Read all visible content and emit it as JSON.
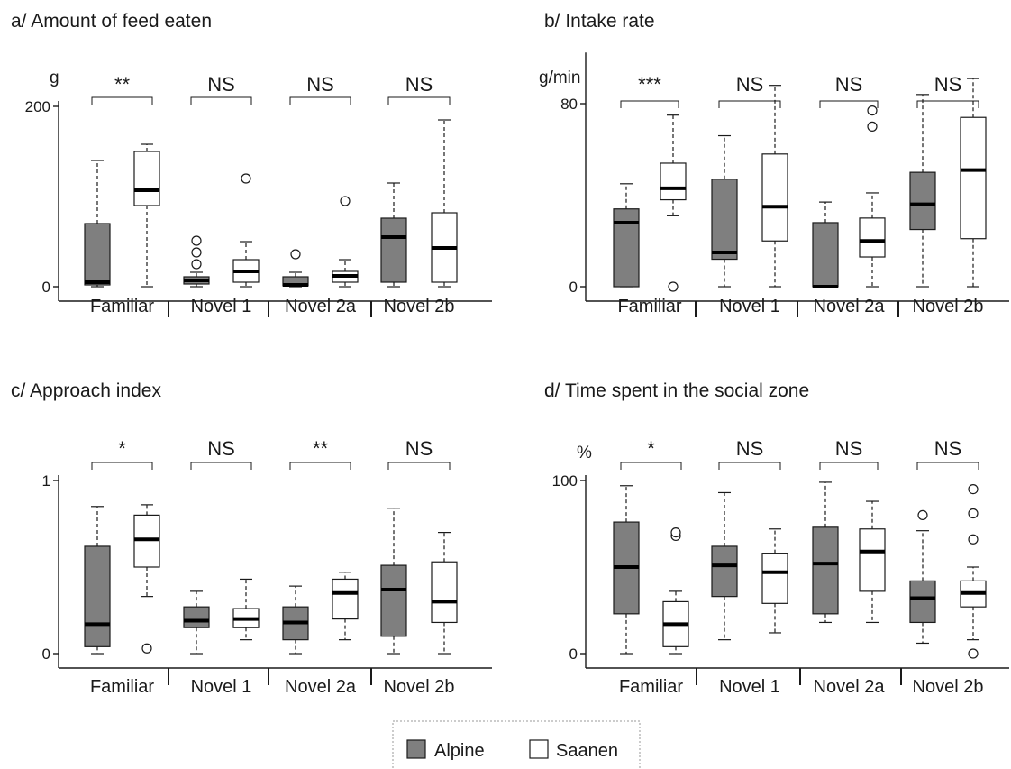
{
  "chart_data": [
    {
      "type": "box",
      "title": "a/ Amount of feed eaten",
      "ylabel": "g",
      "ylim": [
        0,
        200
      ],
      "yticks": [
        0,
        200
      ],
      "categories": [
        "Familiar",
        "Novel 1",
        "Novel 2a",
        "Novel 2b"
      ],
      "significance": [
        "**",
        "NS",
        "NS",
        "NS"
      ],
      "series": [
        {
          "name": "Alpine",
          "boxes": [
            {
              "min": 0,
              "q1": 2,
              "median": 5,
              "q3": 70,
              "max": 140,
              "outliers": []
            },
            {
              "min": 0,
              "q1": 3,
              "median": 7,
              "q3": 11,
              "max": 16,
              "outliers": [
                25,
                38,
                51
              ]
            },
            {
              "min": 0,
              "q1": 1,
              "median": 2,
              "q3": 11,
              "max": 16,
              "outliers": [
                36
              ]
            },
            {
              "min": 0,
              "q1": 5,
              "median": 55,
              "q3": 76,
              "max": 115,
              "outliers": []
            }
          ]
        },
        {
          "name": "Saanen",
          "boxes": [
            {
              "min": 0,
              "q1": 90,
              "median": 107,
              "q3": 150,
              "max": 158,
              "outliers": []
            },
            {
              "min": 0,
              "q1": 5,
              "median": 17,
              "q3": 30,
              "max": 50,
              "outliers": [
                120
              ]
            },
            {
              "min": 0,
              "q1": 5,
              "median": 12,
              "q3": 17,
              "max": 30,
              "outliers": [
                95
              ]
            },
            {
              "min": 0,
              "q1": 5,
              "median": 43,
              "q3": 82,
              "max": 185,
              "outliers": []
            }
          ]
        }
      ]
    },
    {
      "type": "box",
      "title": "b/ Intake rate",
      "ylabel": "g/min",
      "ylim": [
        0,
        100
      ],
      "yticks": [
        0,
        80
      ],
      "categories": [
        "Familiar",
        "Novel 1",
        "Novel 2a",
        "Novel 2b"
      ],
      "significance": [
        "***",
        "NS",
        "NS",
        "NS"
      ],
      "series": [
        {
          "name": "Alpine",
          "boxes": [
            {
              "min": 0,
              "q1": 0,
              "median": 28,
              "q3": 34,
              "max": 45,
              "outliers": []
            },
            {
              "min": 0,
              "q1": 12,
              "median": 15,
              "q3": 47,
              "max": 66,
              "outliers": []
            },
            {
              "min": 0,
              "q1": 0,
              "median": 0,
              "q3": 28,
              "max": 37,
              "outliers": []
            },
            {
              "min": 0,
              "q1": 25,
              "median": 36,
              "q3": 50,
              "max": 84,
              "outliers": []
            }
          ]
        },
        {
          "name": "Saanen",
          "boxes": [
            {
              "min": 31,
              "q1": 38,
              "median": 43,
              "q3": 54,
              "max": 75,
              "outliers": [
                0
              ]
            },
            {
              "min": 0,
              "q1": 20,
              "median": 35,
              "q3": 58,
              "max": 88,
              "outliers": []
            },
            {
              "min": 0,
              "q1": 13,
              "median": 20,
              "q3": 30,
              "max": 41,
              "outliers": [
                70,
                77
              ]
            },
            {
              "min": 0,
              "q1": 21,
              "median": 51,
              "q3": 74,
              "max": 91,
              "outliers": []
            }
          ]
        }
      ]
    },
    {
      "type": "box",
      "title": "c/ Approach index",
      "ylabel": "",
      "ylim": [
        0,
        1
      ],
      "yticks": [
        0,
        1
      ],
      "categories": [
        "Familiar",
        "Novel 1",
        "Novel 2a",
        "Novel 2b"
      ],
      "significance": [
        "*",
        "NS",
        "**",
        "NS"
      ],
      "series": [
        {
          "name": "Alpine",
          "boxes": [
            {
              "min": 0,
              "q1": 0.04,
              "median": 0.17,
              "q3": 0.62,
              "max": 0.85,
              "outliers": []
            },
            {
              "min": 0,
              "q1": 0.15,
              "median": 0.19,
              "q3": 0.27,
              "max": 0.36,
              "outliers": []
            },
            {
              "min": 0,
              "q1": 0.08,
              "median": 0.18,
              "q3": 0.27,
              "max": 0.39,
              "outliers": []
            },
            {
              "min": 0,
              "q1": 0.1,
              "median": 0.37,
              "q3": 0.51,
              "max": 0.84,
              "outliers": []
            }
          ]
        },
        {
          "name": "Saanen",
          "boxes": [
            {
              "min": 0.33,
              "q1": 0.5,
              "median": 0.66,
              "q3": 0.8,
              "max": 0.86,
              "outliers": [
                0.03
              ]
            },
            {
              "min": 0.08,
              "q1": 0.15,
              "median": 0.2,
              "q3": 0.26,
              "max": 0.43,
              "outliers": []
            },
            {
              "min": 0.08,
              "q1": 0.2,
              "median": 0.35,
              "q3": 0.43,
              "max": 0.47,
              "outliers": []
            },
            {
              "min": 0,
              "q1": 0.18,
              "median": 0.3,
              "q3": 0.53,
              "max": 0.7,
              "outliers": []
            }
          ]
        }
      ]
    },
    {
      "type": "box",
      "title": "d/ Time spent in the social zone",
      "ylabel": "%",
      "ylim": [
        0,
        100
      ],
      "yticks": [
        0,
        100
      ],
      "categories": [
        "Familiar",
        "Novel 1",
        "Novel 2a",
        "Novel 2b"
      ],
      "significance": [
        "*",
        "NS",
        "NS",
        "NS"
      ],
      "series": [
        {
          "name": "Alpine",
          "boxes": [
            {
              "min": 0,
              "q1": 23,
              "median": 50,
              "q3": 76,
              "max": 97,
              "outliers": []
            },
            {
              "min": 8,
              "q1": 33,
              "median": 51,
              "q3": 62,
              "max": 93,
              "outliers": []
            },
            {
              "min": 18,
              "q1": 23,
              "median": 52,
              "q3": 73,
              "max": 99,
              "outliers": []
            },
            {
              "min": 6,
              "q1": 18,
              "median": 32,
              "q3": 42,
              "max": 71,
              "outliers": [
                80
              ]
            }
          ]
        },
        {
          "name": "Saanen",
          "boxes": [
            {
              "min": 0,
              "q1": 4,
              "median": 17,
              "q3": 30,
              "max": 36,
              "outliers": [
                68,
                70
              ]
            },
            {
              "min": 12,
              "q1": 29,
              "median": 47,
              "q3": 58,
              "max": 72,
              "outliers": []
            },
            {
              "min": 18,
              "q1": 36,
              "median": 59,
              "q3": 72,
              "max": 88,
              "outliers": []
            },
            {
              "min": 8,
              "q1": 27,
              "median": 35,
              "q3": 42,
              "max": 50,
              "outliers": [
                0,
                66,
                81,
                95
              ]
            }
          ]
        }
      ]
    }
  ],
  "legend": {
    "items": [
      {
        "label": "Alpine",
        "color": "#7f7f7f"
      },
      {
        "label": "Saanen",
        "color": "#ffffff"
      }
    ]
  },
  "colors": {
    "alpine": "#7f7f7f",
    "saanen": "#ffffff",
    "stroke": "#1a1a1a"
  }
}
